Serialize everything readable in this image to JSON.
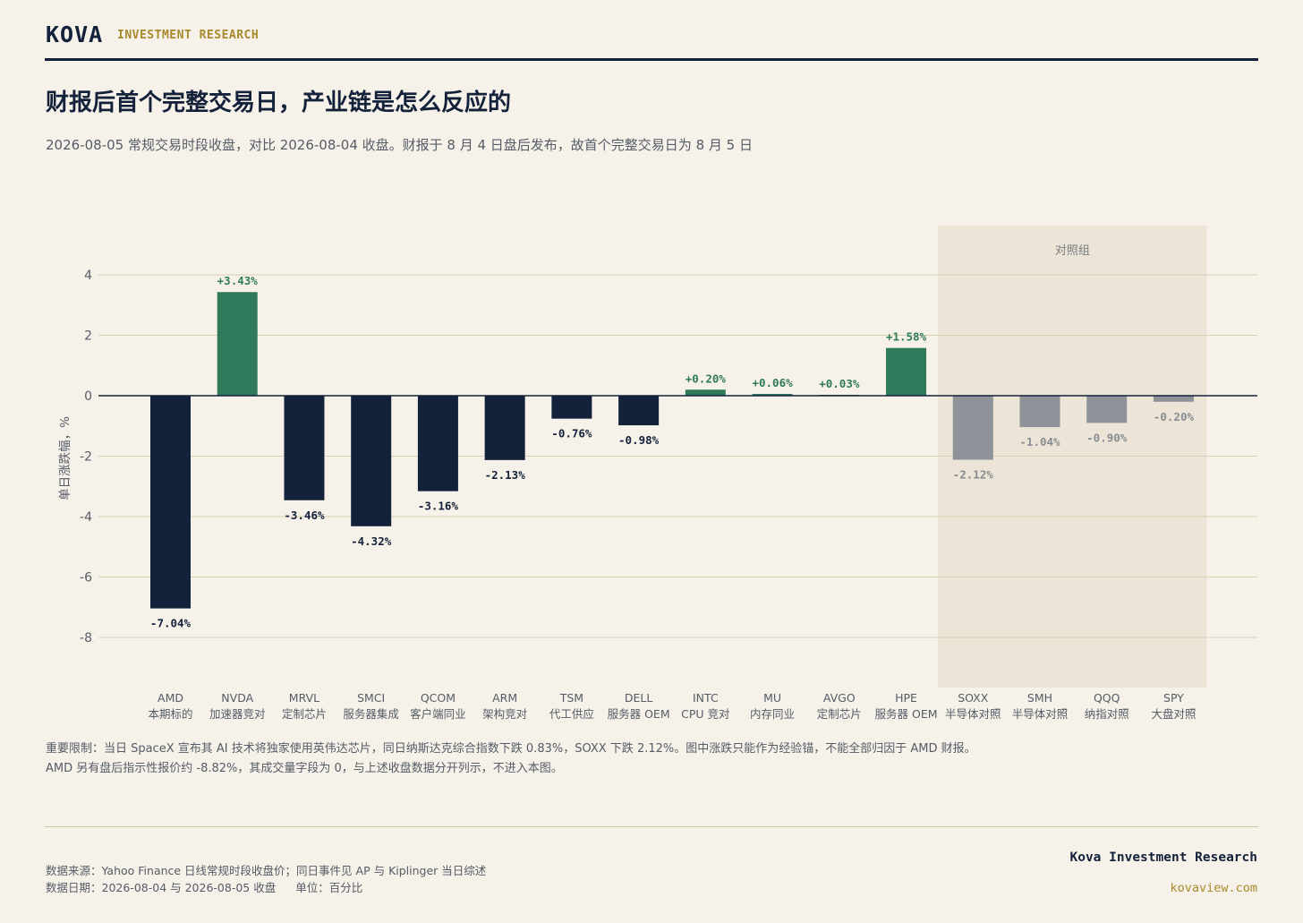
{
  "header": {
    "brand": "KOVA",
    "tagline": "INVESTMENT RESEARCH"
  },
  "title": "财报后首个完整交易日，产业链是怎么反应的",
  "subtitle": "2026-08-05 常规交易时段收盘，对比 2026-08-04 收盘。财报于 8 月 4 日盘后发布，故首个完整交易日为 8 月 5 日",
  "chart_data": {
    "type": "bar",
    "ylabel": "单日涨跌幅，%",
    "ylim": [
      -9.6,
      5.6
    ],
    "yticks": [
      4,
      2,
      0,
      -2,
      -4,
      -6,
      -8
    ],
    "grid": true,
    "control_group_label": "对照组",
    "categories": [
      "AMD",
      "NVDA",
      "MRVL",
      "SMCI",
      "QCOM",
      "ARM",
      "TSM",
      "DELL",
      "INTC",
      "MU",
      "AVGO",
      "HPE",
      "SOXX",
      "SMH",
      "QQQ",
      "SPY"
    ],
    "category_sublabels": [
      "本期标的",
      "加速器竞对",
      "定制芯片",
      "服务器集成",
      "客户端同业",
      "架构竞对",
      "代工供应",
      "服务器 OEM",
      "CPU 竞对",
      "内存同业",
      "定制芯片",
      "服务器 OEM",
      "半导体对照",
      "半导体对照",
      "纳指对照",
      "大盘对照"
    ],
    "values": [
      -7.04,
      3.43,
      -3.46,
      -4.32,
      -3.16,
      -2.13,
      -0.76,
      -0.98,
      0.2,
      0.06,
      0.03,
      1.58,
      -2.12,
      -1.04,
      -0.9,
      -0.2
    ],
    "value_labels": [
      "-7.04%",
      "+3.43%",
      "-3.46%",
      "-4.32%",
      "-3.16%",
      "-2.13%",
      "-0.76%",
      "-0.98%",
      "+0.20%",
      "+0.06%",
      "+0.03%",
      "+1.58%",
      "-2.12%",
      "-1.04%",
      "-0.90%",
      "-0.20%"
    ],
    "is_control": [
      false,
      false,
      false,
      false,
      false,
      false,
      false,
      false,
      false,
      false,
      false,
      false,
      true,
      true,
      true,
      true
    ],
    "colors": {
      "negative": "#13223a",
      "positive": "#2e7a5a",
      "control": "#8e9299",
      "control_label": "#888c93",
      "control_band": "#ece4d6",
      "grid": "#d6d0ae",
      "zero_line": "#13223a"
    }
  },
  "notes": {
    "line1": "重要限制：当日 SpaceX 宣布其 AI 技术将独家使用英伟达芯片，同日纳斯达克综合指数下跌 0.83%，SOXX 下跌 2.12%。图中涨跌只能作为经验锚，不能全部归因于 AMD 财报。",
    "line2": "AMD 另有盘后指示性报价约 -8.82%，其成交量字段为 0，与上述收盘数据分开列示，不进入本图。"
  },
  "footer": {
    "source_line1": "数据来源：Yahoo Finance 日线常规时段收盘价；同日事件见 AP 与 Kiplinger 当日综述",
    "source_date": "数据日期：2026-08-04 与 2026-08-05 收盘",
    "source_unit": "单位：百分比",
    "brand": "Kova Investment Research",
    "url": "kovaview.com"
  }
}
